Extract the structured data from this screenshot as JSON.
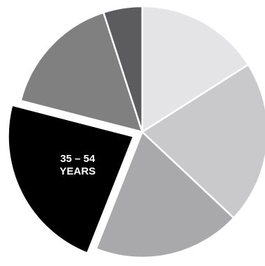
{
  "chart_data": {
    "type": "pie",
    "title": "",
    "start_angle_deg": 0,
    "direction": "clockwise",
    "slices": [
      {
        "label": "",
        "value": 16.0,
        "color": "#e4e4e6",
        "exploded": false
      },
      {
        "label": "",
        "value": 21.0,
        "color": "#c9c9cb",
        "exploded": false
      },
      {
        "label": "",
        "value": 19.0,
        "color": "#a9a9ab",
        "exploded": false
      },
      {
        "label": "35 – 54\nYEARS",
        "value": 23.0,
        "color": "#000000",
        "exploded": true
      },
      {
        "label": "",
        "value": 16.0,
        "color": "#808080",
        "exploded": false
      },
      {
        "label": "",
        "value": 5.0,
        "color": "#5c5c5e",
        "exploded": false
      }
    ]
  }
}
